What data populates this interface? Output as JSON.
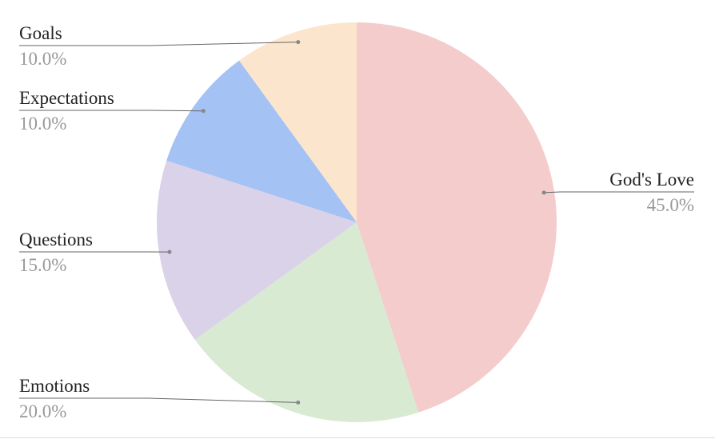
{
  "chart_data": {
    "type": "pie",
    "categories": [
      "God's Love",
      "Emotions",
      "Questions",
      "Expectations",
      "Goals"
    ],
    "values": [
      45,
      20,
      15,
      10,
      10
    ],
    "value_labels": [
      "45.0%",
      "20.0%",
      "15.0%",
      "10.0%",
      "10.0%"
    ],
    "colors": [
      "#f4cccc",
      "#d9ead3",
      "#d9d2e9",
      "#a4c2f4",
      "#fce5cd"
    ]
  }
}
